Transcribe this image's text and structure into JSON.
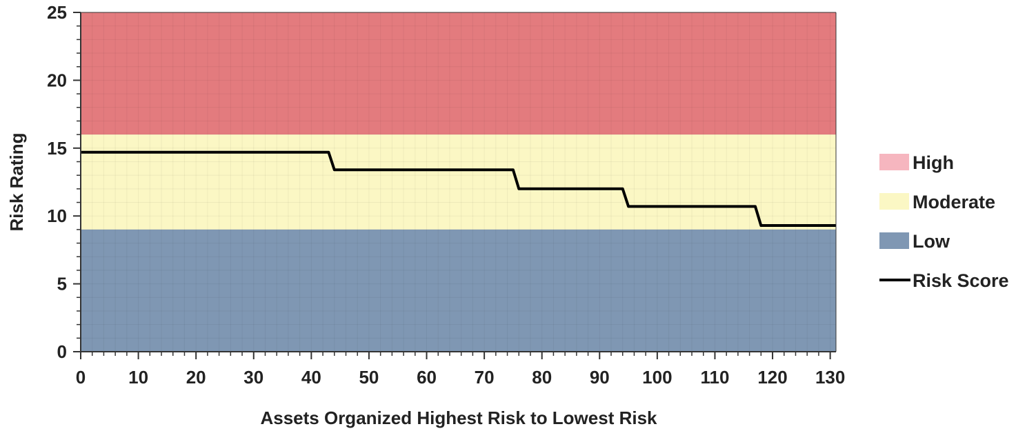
{
  "chart_data": {
    "type": "line",
    "title": "",
    "xlabel": "Assets Organized Highest Risk to Lowest Risk",
    "ylabel": "Risk Rating",
    "xlim": [
      0,
      131
    ],
    "ylim": [
      0,
      25
    ],
    "x_ticks": [
      0,
      10,
      20,
      30,
      40,
      50,
      60,
      70,
      80,
      90,
      100,
      110,
      120,
      130
    ],
    "y_ticks": [
      0,
      5,
      10,
      15,
      20,
      25
    ],
    "grid": true,
    "legend_position": "right",
    "bands": [
      {
        "name": "High",
        "from": 16,
        "to": 25,
        "color": "#e37b7e"
      },
      {
        "name": "Moderate",
        "from": 9,
        "to": 16,
        "color": "#fbf7c4"
      },
      {
        "name": "Low",
        "from": 0,
        "to": 9,
        "color": "#7f97b3"
      }
    ],
    "series": [
      {
        "name": "Risk Score",
        "color": "#000000",
        "points": [
          [
            0,
            14.7
          ],
          [
            43,
            14.7
          ],
          [
            44,
            13.4
          ],
          [
            75,
            13.4
          ],
          [
            76,
            12.0
          ],
          [
            94,
            12.0
          ],
          [
            95,
            10.7
          ],
          [
            117,
            10.7
          ],
          [
            118,
            9.3
          ],
          [
            131,
            9.3
          ]
        ]
      }
    ],
    "legend": [
      {
        "label": "High",
        "kind": "swatch",
        "color": "#f6b6bf"
      },
      {
        "label": "Moderate",
        "kind": "swatch",
        "color": "#fbf7c4"
      },
      {
        "label": "Low",
        "kind": "swatch",
        "color": "#7f97b3"
      },
      {
        "label": "Risk Score",
        "kind": "line",
        "color": "#000000"
      }
    ]
  }
}
